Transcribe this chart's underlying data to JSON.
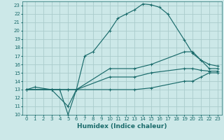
{
  "xlabel": "Humidex (Indice chaleur)",
  "xlim": [
    -0.5,
    23.5
  ],
  "ylim": [
    10,
    23.5
  ],
  "bg_color": "#cce8e8",
  "grid_color": "#aacccc",
  "line_color": "#1a6b6b",
  "lines": [
    {
      "x": [
        0,
        1,
        3,
        4,
        5,
        6,
        7,
        8,
        10,
        11,
        12,
        13,
        14,
        15,
        16,
        17,
        19,
        20,
        21,
        22,
        23
      ],
      "y": [
        13,
        13.3,
        13,
        13,
        10,
        13,
        17,
        17.5,
        20,
        21.5,
        22,
        22.5,
        23.2,
        23.1,
        22.8,
        22,
        18.9,
        17.3,
        16.5,
        15.5,
        15.5
      ]
    },
    {
      "x": [
        0,
        3,
        5,
        6,
        10,
        13,
        15,
        19,
        20,
        21,
        22,
        23
      ],
      "y": [
        13,
        13,
        13,
        13,
        15.5,
        15.5,
        16,
        17.5,
        17.5,
        16.5,
        16,
        15.8
      ]
    },
    {
      "x": [
        0,
        3,
        5,
        6,
        10,
        13,
        15,
        19,
        20,
        21,
        22,
        23
      ],
      "y": [
        13,
        13,
        13,
        13,
        14.5,
        14.5,
        15,
        15.5,
        15.5,
        15.3,
        15.2,
        15.2
      ]
    },
    {
      "x": [
        0,
        3,
        5,
        6,
        10,
        13,
        15,
        19,
        20,
        21,
        22,
        23
      ],
      "y": [
        13,
        13,
        11,
        13,
        13,
        13,
        13.2,
        14,
        14,
        14.5,
        15,
        15
      ]
    }
  ],
  "xticks": [
    0,
    1,
    2,
    3,
    4,
    5,
    6,
    7,
    8,
    9,
    10,
    11,
    12,
    13,
    14,
    15,
    16,
    17,
    18,
    19,
    20,
    21,
    22,
    23
  ],
  "yticks": [
    10,
    11,
    12,
    13,
    14,
    15,
    16,
    17,
    18,
    19,
    20,
    21,
    22,
    23
  ],
  "tick_fontsize": 5,
  "xlabel_fontsize": 6.5
}
